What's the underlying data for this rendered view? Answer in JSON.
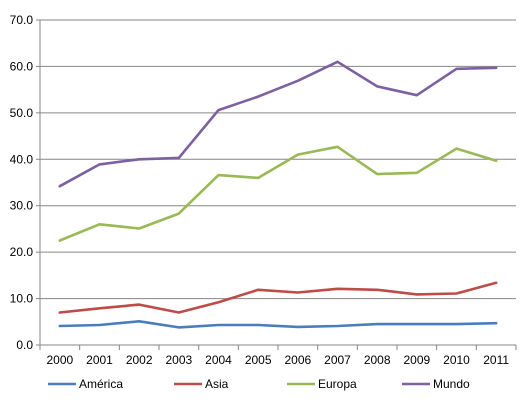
{
  "chart_data": {
    "type": "line",
    "title": "",
    "xlabel": "",
    "ylabel": "",
    "categories": [
      "2000",
      "2001",
      "2002",
      "2003",
      "2004",
      "2005",
      "2006",
      "2007",
      "2008",
      "2009",
      "2010",
      "2011"
    ],
    "ylim": [
      0,
      70
    ],
    "yticks": [
      "0.0",
      "10.0",
      "20.0",
      "30.0",
      "40.0",
      "50.0",
      "60.0",
      "70.0"
    ],
    "grid": true,
    "legend": "bottom",
    "series": [
      {
        "name": "América",
        "color": "#4a7ebb",
        "values": [
          4.1,
          4.3,
          5.1,
          3.8,
          4.3,
          4.3,
          3.9,
          4.1,
          4.5,
          4.5,
          4.5,
          4.7
        ]
      },
      {
        "name": "Asia",
        "color": "#be4b48",
        "values": [
          7.0,
          7.9,
          8.7,
          7.0,
          9.2,
          11.9,
          11.3,
          12.1,
          11.9,
          10.9,
          11.1,
          13.4
        ]
      },
      {
        "name": "Europa",
        "color": "#98b954",
        "values": [
          22.5,
          26.0,
          25.1,
          28.3,
          36.6,
          36.0,
          41.0,
          42.7,
          36.8,
          37.1,
          42.3,
          39.7
        ]
      },
      {
        "name": "Mundo",
        "color": "#7d60a0",
        "values": [
          34.2,
          38.9,
          40.0,
          40.3,
          50.6,
          53.5,
          56.9,
          61.0,
          55.7,
          53.8,
          59.5,
          59.7
        ]
      }
    ]
  }
}
